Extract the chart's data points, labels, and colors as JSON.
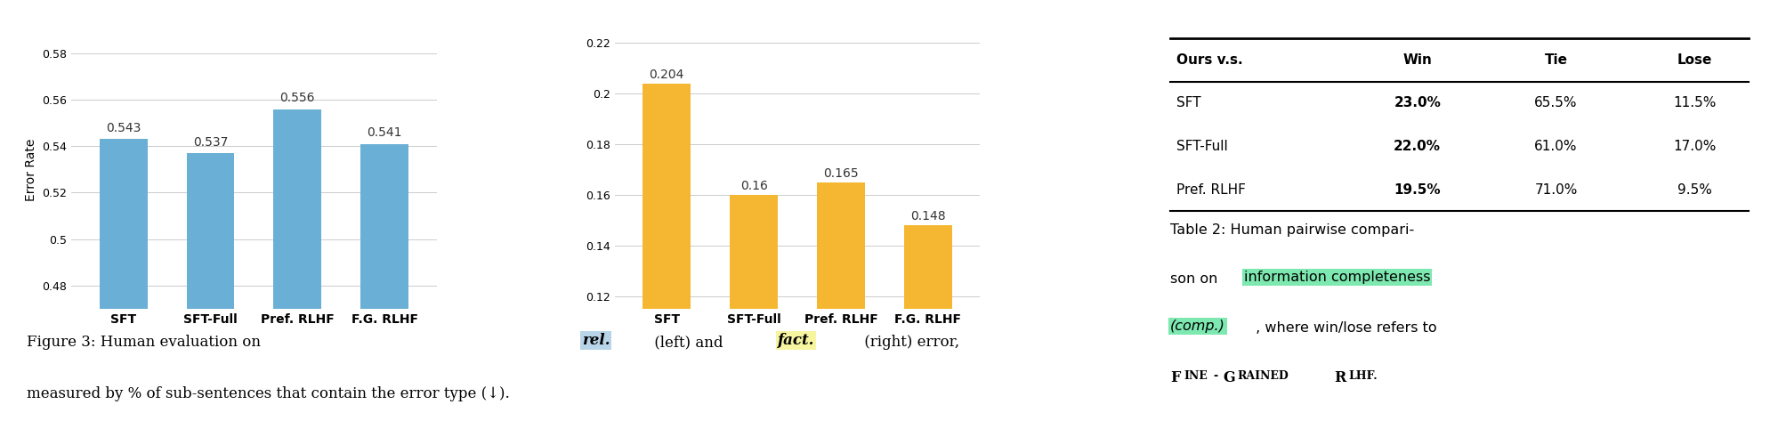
{
  "bar1_categories": [
    "SFT",
    "SFT-Full",
    "Pref. RLHF",
    "F.G. RLHF"
  ],
  "bar1_values": [
    0.543,
    0.537,
    0.556,
    0.541
  ],
  "bar1_color": "#6aafd6",
  "bar1_ylim": [
    0.47,
    0.59
  ],
  "bar1_yticks": [
    0.48,
    0.5,
    0.52,
    0.54,
    0.56,
    0.58
  ],
  "bar1_ylabel": "Error Rate",
  "bar2_categories": [
    "SFT",
    "SFT-Full",
    "Pref. RLHF",
    "F.G. RLHF"
  ],
  "bar2_values": [
    0.204,
    0.16,
    0.165,
    0.148
  ],
  "bar2_color": "#f5b731",
  "bar2_ylim": [
    0.115,
    0.225
  ],
  "bar2_yticks": [
    0.12,
    0.14,
    0.16,
    0.18,
    0.2,
    0.22
  ],
  "table_col_labels": [
    "Ours v.s.",
    "Win",
    "Tie",
    "Lose"
  ],
  "table_rows": [
    [
      "SFT",
      "23.0%",
      "65.5%",
      "11.5%"
    ],
    [
      "SFT-Full",
      "22.0%",
      "61.0%",
      "17.0%"
    ],
    [
      "Pref. RLHF",
      "19.5%",
      "71.0%",
      "9.5%"
    ]
  ],
  "bg_color": "#ffffff",
  "bar_label_fontsize": 10,
  "axis_fontsize": 9
}
